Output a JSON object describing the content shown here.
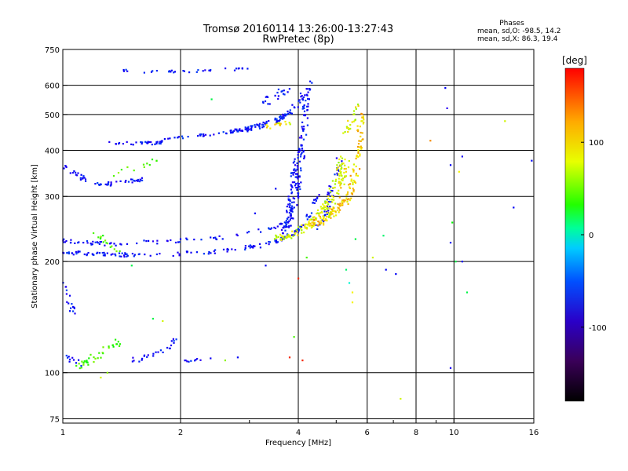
{
  "chart_data": {
    "type": "scatter",
    "title": "Tromsø 20160114 13:26:00-13:27:43",
    "subtitle": "RwPretec (8p)",
    "xlabel": "Frequency [MHz]",
    "ylabel": "Stationary phase Virtual Height [km]",
    "x_scale": "log",
    "y_scale": "log",
    "xlim": [
      1,
      16
    ],
    "ylim": [
      73,
      750
    ],
    "x_ticks": [
      1,
      2,
      4,
      6,
      8,
      10,
      16
    ],
    "x_tick_labels": [
      "1",
      "2",
      "4",
      "6",
      "8",
      "10",
      "16"
    ],
    "x_minor_ticks": [
      3,
      5,
      7,
      9
    ],
    "y_ticks": [
      75,
      100,
      200,
      300,
      400,
      500,
      600,
      750
    ],
    "y_tick_labels": [
      "75",
      "100",
      "200",
      "300",
      "400",
      "500",
      "600",
      "750"
    ],
    "grid": true,
    "phase_stats": {
      "heading": "Phases",
      "o_label": "mean, sd,O:",
      "o_mean": -98.5,
      "o_sd": 14.2,
      "x_label": "mean, sd,X:",
      "x_mean": 86.3,
      "x_sd": 19.4
    },
    "colorbar": {
      "label": "[deg]",
      "range": [
        -180,
        180
      ],
      "ticks": [
        -100,
        0,
        100
      ],
      "tick_labels": [
        "-100",
        "0",
        "100"
      ]
    },
    "trace_groups": [
      {
        "kind": "curve",
        "phase": -100,
        "x": [
          1.0,
          1.05,
          1.15,
          1.3,
          1.5,
          1.8,
          2.2,
          2.7,
          3.2,
          3.6,
          3.9,
          4.1,
          4.3,
          4.5
        ],
        "y": [
          212,
          211,
          210,
          209,
          208,
          209,
          211,
          215,
          221,
          229,
          238,
          250,
          272,
          305
        ],
        "n": 150,
        "spread": 0.012
      },
      {
        "kind": "curve",
        "phase": -100,
        "x": [
          1.0,
          1.1,
          1.2,
          1.35,
          1.5,
          1.7,
          2.0,
          2.3,
          2.7,
          3.1,
          3.5,
          3.8
        ],
        "y": [
          228,
          226,
          224,
          223,
          224,
          226,
          228,
          230,
          234,
          240,
          248,
          258
        ],
        "n": 80,
        "spread": 0.012
      },
      {
        "kind": "curve",
        "phase": -100,
        "x": [
          3.7,
          3.85,
          3.95,
          4.0,
          4.05,
          4.1,
          4.15,
          4.2
        ],
        "y": [
          245,
          270,
          300,
          330,
          370,
          420,
          480,
          560
        ],
        "n": 110,
        "spread": 0.02
      },
      {
        "kind": "curve",
        "phase": -100,
        "x": [
          3.6,
          3.75,
          3.85,
          3.9,
          3.95
        ],
        "y": [
          230,
          260,
          300,
          340,
          380
        ],
        "n": 60,
        "spread": 0.018
      },
      {
        "kind": "curve",
        "phase": -100,
        "x": [
          1.6,
          2.0,
          2.4,
          2.8,
          3.2,
          3.5,
          3.7
        ],
        "y": [
          420,
          432,
          442,
          453,
          468,
          484,
          495
        ],
        "n": 80,
        "spread": 0.01
      },
      {
        "kind": "curve",
        "phase": -100,
        "x": [
          2.6,
          3.0,
          3.3,
          3.6,
          3.8,
          4.0,
          4.2,
          4.4
        ],
        "y": [
          445,
          458,
          470,
          490,
          510,
          540,
          580,
          620
        ],
        "n": 70,
        "spread": 0.015
      },
      {
        "kind": "curve",
        "phase": -100,
        "x": [
          1.3,
          1.45,
          1.6,
          1.8
        ],
        "y": [
          420,
          418,
          418,
          420
        ],
        "n": 25,
        "spread": 0.01
      },
      {
        "kind": "curve",
        "phase": -100,
        "x": [
          1.2,
          1.35,
          1.5,
          1.6
        ],
        "y": [
          322,
          325,
          330,
          333
        ],
        "n": 35,
        "spread": 0.012
      },
      {
        "kind": "curve",
        "phase": -100,
        "x": [
          1.0,
          1.05,
          1.1,
          1.15
        ],
        "y": [
          360,
          350,
          340,
          330
        ],
        "n": 20,
        "spread": 0.015
      },
      {
        "kind": "curve",
        "phase": -100,
        "x": [
          1.4,
          1.6,
          1.8,
          1.95
        ],
        "y": [
          658,
          652,
          652,
          656
        ],
        "n": 15,
        "spread": 0.008
      },
      {
        "kind": "curve",
        "phase": -100,
        "x": [
          2.0,
          2.2,
          2.4,
          2.7,
          3.0
        ],
        "y": [
          652,
          655,
          660,
          663,
          668
        ],
        "n": 18,
        "spread": 0.008
      },
      {
        "kind": "curve",
        "phase": -100,
        "x": [
          4.5,
          4.7,
          4.9,
          5.1
        ],
        "y": [
          245,
          275,
          320,
          380
        ],
        "n": 45,
        "spread": 0.02
      },
      {
        "kind": "curve",
        "phase": -100,
        "x": [
          1.5,
          1.7,
          1.85,
          1.95
        ],
        "y": [
          108,
          112,
          118,
          122
        ],
        "n": 25,
        "spread": 0.02
      },
      {
        "kind": "curve",
        "phase": -100,
        "x": [
          2.0,
          2.2,
          2.4
        ],
        "y": [
          107,
          108,
          108
        ],
        "n": 10,
        "spread": 0.015
      },
      {
        "kind": "curve",
        "phase": 120,
        "x": [
          4.2,
          4.6,
          5.0,
          5.4,
          5.6,
          5.75,
          5.8
        ],
        "y": [
          250,
          260,
          275,
          300,
          350,
          420,
          520
        ],
        "n": 150,
        "spread": 0.02
      },
      {
        "kind": "curve",
        "phase": 100,
        "x": [
          3.5,
          3.8,
          4.1,
          4.4,
          4.7,
          5.0,
          5.2
        ],
        "y": [
          230,
          236,
          245,
          260,
          285,
          330,
          390
        ],
        "n": 110,
        "spread": 0.02
      },
      {
        "kind": "curve",
        "phase": 110,
        "x": [
          4.6,
          4.9,
          5.1,
          5.3
        ],
        "y": [
          255,
          280,
          320,
          370
        ],
        "n": 60,
        "spread": 0.02
      },
      {
        "kind": "curve",
        "phase": 60,
        "x": [
          1.1,
          1.2,
          1.3,
          1.4
        ],
        "y": [
          104,
          110,
          116,
          121
        ],
        "n": 35,
        "spread": 0.025
      },
      {
        "kind": "curve",
        "phase": 60,
        "x": [
          1.2,
          1.3,
          1.4
        ],
        "y": [
          240,
          225,
          212
        ],
        "n": 15,
        "spread": 0.015
      },
      {
        "kind": "curve",
        "phase": 70,
        "x": [
          1.2,
          1.4,
          1.6,
          1.75
        ],
        "y": [
          340,
          350,
          365,
          380
        ],
        "n": 12,
        "spread": 0.02
      },
      {
        "kind": "curve",
        "phase": 110,
        "x": [
          3.3,
          3.6,
          3.9
        ],
        "y": [
          462,
          470,
          478
        ],
        "n": 15,
        "spread": 0.012
      },
      {
        "kind": "curve",
        "phase": -100,
        "x": [
          1.0,
          1.02,
          1.05,
          1.08
        ],
        "y": [
          175,
          160,
          150,
          145
        ],
        "n": 18,
        "spread": 0.02
      },
      {
        "kind": "curve",
        "phase": -100,
        "x": [
          1.0,
          1.05,
          1.1
        ],
        "y": [
          108,
          110,
          106
        ],
        "n": 12,
        "spread": 0.02
      },
      {
        "kind": "curve",
        "phase": -100,
        "x": [
          3.2,
          3.4,
          3.6,
          3.8
        ],
        "y": [
          540,
          560,
          580,
          600
        ],
        "n": 20,
        "spread": 0.03
      },
      {
        "kind": "curve",
        "phase": 100,
        "x": [
          5.3,
          5.5,
          5.7
        ],
        "y": [
          440,
          480,
          530
        ],
        "n": 20,
        "spread": 0.02
      }
    ],
    "isolated_points": [
      {
        "x": 9.5,
        "y": 590,
        "phase": -100
      },
      {
        "x": 9.6,
        "y": 520,
        "phase": -120
      },
      {
        "x": 8.7,
        "y": 425,
        "phase": 140
      },
      {
        "x": 9.8,
        "y": 365,
        "phase": -100
      },
      {
        "x": 10.5,
        "y": 385,
        "phase": -110
      },
      {
        "x": 10.3,
        "y": 350,
        "phase": 110
      },
      {
        "x": 14.2,
        "y": 280,
        "phase": -100
      },
      {
        "x": 15.8,
        "y": 375,
        "phase": -100
      },
      {
        "x": 13.5,
        "y": 480,
        "phase": 100
      },
      {
        "x": 9.9,
        "y": 255,
        "phase": 40
      },
      {
        "x": 9.8,
        "y": 225,
        "phase": -100
      },
      {
        "x": 10.1,
        "y": 200,
        "phase": 20
      },
      {
        "x": 10.5,
        "y": 200,
        "phase": -100
      },
      {
        "x": 10.8,
        "y": 165,
        "phase": 20
      },
      {
        "x": 9.8,
        "y": 103,
        "phase": -110
      },
      {
        "x": 7.3,
        "y": 85,
        "phase": 100
      },
      {
        "x": 6.6,
        "y": 235,
        "phase": 10
      },
      {
        "x": 6.2,
        "y": 205,
        "phase": 100
      },
      {
        "x": 6.7,
        "y": 190,
        "phase": -100
      },
      {
        "x": 7.1,
        "y": 185,
        "phase": -100
      },
      {
        "x": 5.6,
        "y": 230,
        "phase": 20
      },
      {
        "x": 5.4,
        "y": 175,
        "phase": -20
      },
      {
        "x": 5.5,
        "y": 165,
        "phase": 110
      },
      {
        "x": 5.5,
        "y": 155,
        "phase": 110
      },
      {
        "x": 5.3,
        "y": 190,
        "phase": 10
      },
      {
        "x": 4.0,
        "y": 180,
        "phase": 170
      },
      {
        "x": 3.8,
        "y": 110,
        "phase": 170
      },
      {
        "x": 4.1,
        "y": 108,
        "phase": 170
      },
      {
        "x": 3.9,
        "y": 125,
        "phase": 60
      },
      {
        "x": 4.2,
        "y": 205,
        "phase": 60
      },
      {
        "x": 3.3,
        "y": 195,
        "phase": -100
      },
      {
        "x": 3.1,
        "y": 270,
        "phase": -100
      },
      {
        "x": 3.5,
        "y": 315,
        "phase": -100
      },
      {
        "x": 2.4,
        "y": 550,
        "phase": 20
      },
      {
        "x": 1.7,
        "y": 140,
        "phase": 20
      },
      {
        "x": 1.5,
        "y": 195,
        "phase": 20
      },
      {
        "x": 1.3,
        "y": 100,
        "phase": 80
      },
      {
        "x": 1.25,
        "y": 97,
        "phase": 100
      },
      {
        "x": 2.8,
        "y": 110,
        "phase": -100
      },
      {
        "x": 2.6,
        "y": 108,
        "phase": 80
      },
      {
        "x": 1.8,
        "y": 138,
        "phase": 100
      }
    ]
  }
}
